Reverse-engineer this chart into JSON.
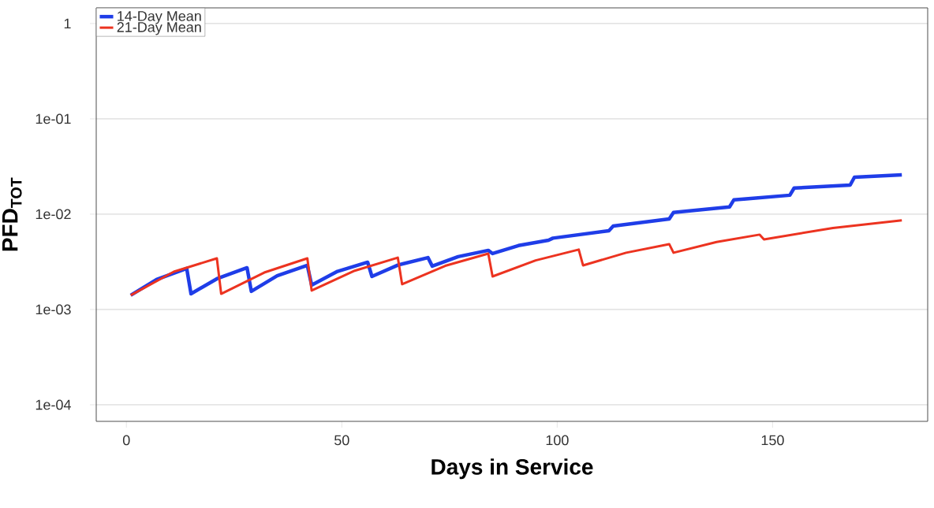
{
  "chart_data": {
    "type": "line",
    "xlabel": "Days in Service",
    "ylabel": "PFD$_{TOT}$",
    "log": "y",
    "grid": "y",
    "legend": "top left",
    "line_style": "solid",
    "marker": "none",
    "xlim": [
      -7,
      186
    ],
    "ylim": [
      6.7e-05,
      1.46
    ],
    "xticks": [
      0,
      50,
      100,
      150
    ],
    "yticks": [
      {
        "value": 1,
        "label": "1"
      },
      {
        "value": 0.1,
        "label": "1e-01"
      },
      {
        "value": 0.01,
        "label": "1e-02"
      },
      {
        "value": 0.001,
        "label": "1e-03"
      },
      {
        "value": 0.0001,
        "label": "1e-04"
      }
    ],
    "series": [
      {
        "name": "14-Day Mean",
        "color": "#1f3de8",
        "x": [
          1,
          7,
          14,
          15,
          21,
          28,
          29,
          35,
          42,
          43,
          49,
          56,
          57,
          63,
          70,
          71,
          77,
          84,
          85,
          91,
          98,
          99,
          112,
          113,
          126,
          127,
          140,
          141,
          154,
          155,
          168,
          169,
          180
        ],
        "values": [
          0.00141,
          0.00206,
          0.00269,
          0.00146,
          0.0021,
          0.00274,
          0.00155,
          0.00226,
          0.0029,
          0.0018,
          0.00251,
          0.00313,
          0.00222,
          0.00292,
          0.0035,
          0.00285,
          0.00358,
          0.00417,
          0.00386,
          0.00468,
          0.00533,
          0.0056,
          0.0067,
          0.0075,
          0.0089,
          0.0104,
          0.0119,
          0.0141,
          0.0158,
          0.0188,
          0.0202,
          0.0244,
          0.0259
        ]
      },
      {
        "name": "21-Day Mean",
        "color": "#ec3320",
        "x": [
          1,
          11,
          21,
          22,
          32,
          42,
          43,
          53,
          63,
          64,
          74,
          84,
          85,
          95,
          105,
          106,
          116,
          126,
          127,
          137,
          147,
          148,
          164,
          180
        ],
        "values": [
          0.00141,
          0.00249,
          0.00344,
          0.00146,
          0.00244,
          0.00344,
          0.00158,
          0.00255,
          0.0035,
          0.00184,
          0.00287,
          0.00386,
          0.00222,
          0.00327,
          0.00425,
          0.0029,
          0.00394,
          0.00485,
          0.00394,
          0.0051,
          0.0061,
          0.00544,
          0.00716,
          0.0086
        ]
      }
    ]
  }
}
